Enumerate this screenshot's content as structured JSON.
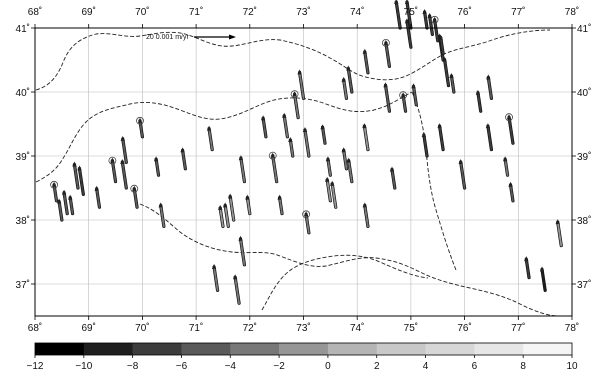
{
  "map": {
    "lon_range": [
      68,
      78
    ],
    "lat_range": [
      36.5,
      41
    ],
    "x_ticks": [
      "68˚",
      "69˚",
      "70˚",
      "71˚",
      "72˚",
      "73˚",
      "74˚",
      "75˚",
      "76˚",
      "77˚",
      "78˚"
    ],
    "y_ticks": [
      "37˚",
      "38˚",
      "39˚",
      "40˚",
      "41˚"
    ],
    "grid": true,
    "reference_vector": {
      "label": "20 0.001 m/yr"
    }
  },
  "colorbar": {
    "ticks": [
      "−12",
      "−10",
      "−8",
      "−6",
      "−4",
      "−2",
      "0",
      "2",
      "4",
      "6",
      "8",
      "10"
    ],
    "colors": [
      "#000000",
      "#1e1e1e",
      "#3c3c3c",
      "#5a5a5a",
      "#787878",
      "#969696",
      "#b4b4b4",
      "#c8c8c8",
      "#d7d7d7",
      "#e6e6e6",
      "#f5f5f5"
    ]
  },
  "chart_data": {
    "type": "scatter",
    "title": "",
    "xlabel": "",
    "ylabel": "",
    "xlim": [
      68,
      78
    ],
    "ylim": [
      36.5,
      41
    ],
    "grid": true,
    "series": [
      {
        "x": [
          68.4,
          68.5,
          68.6,
          68.8,
          68.9,
          68.7,
          69.2,
          69.5,
          69.7,
          69.7,
          70.3,
          70.8,
          71.3,
          71.9,
          72.5,
          72.0,
          71.5,
          71.6,
          71.7,
          71.9,
          72.6,
          73.1,
          73.5,
          73.6,
          73.1,
          73.5,
          72.3,
          72.7,
          72.9,
          73.0,
          73.4,
          73.8,
          73.9,
          74.2,
          74.6,
          74.9,
          75.1,
          75.3,
          75.6,
          75.0,
          75.3,
          75.4,
          75.5,
          75.6,
          75.7,
          75.8,
          76.3,
          76.5,
          76.5,
          76.9,
          76.9,
          77.2,
          77.5,
          77.8,
          76.0,
          76.8,
          69.9,
          70.4,
          71.4,
          71.8,
          72.8,
          73.8,
          74.2,
          74.6,
          75.0,
          75.6,
          74.7,
          74.2,
          73.9,
          74.8,
          70.0
        ],
        "y": [
          38.3,
          38.0,
          38.1,
          38.5,
          38.4,
          38.1,
          38.2,
          38.6,
          38.9,
          38.5,
          38.7,
          38.8,
          39.1,
          38.6,
          38.6,
          38.1,
          37.9,
          37.9,
          38.0,
          37.3,
          38.1,
          37.8,
          38.3,
          38.2,
          39.0,
          38.7,
          39.3,
          39.3,
          39.6,
          39.9,
          39.2,
          38.8,
          38.6,
          39.1,
          39.7,
          39.7,
          39.8,
          39.0,
          39.1,
          41.0,
          41.0,
          40.9,
          40.8,
          40.5,
          40.1,
          40.0,
          39.7,
          39.9,
          39.1,
          39.2,
          38.3,
          37.1,
          36.9,
          37.6,
          38.5,
          38.7,
          38.2,
          37.9,
          36.9,
          36.7,
          39.0,
          39.9,
          40.3,
          40.4,
          40.7,
          40.6,
          38.5,
          37.9,
          40.0,
          41.0,
          39.3
        ],
        "values": [
          -6,
          -6,
          -6,
          -6,
          -8,
          -6,
          -6,
          -6,
          -6,
          -6,
          -6,
          -6,
          -4,
          -4,
          -4,
          -2,
          -2,
          -2,
          -2,
          -4,
          -4,
          -4,
          -2,
          -2,
          -4,
          -4,
          -6,
          -4,
          -4,
          -4,
          -6,
          -4,
          -4,
          -2,
          -6,
          -6,
          -6,
          -8,
          -8,
          -8,
          -8,
          -8,
          -8,
          -8,
          -8,
          -6,
          -8,
          -6,
          -8,
          -8,
          -6,
          -8,
          -10,
          -2,
          -6,
          -4,
          -6,
          -4,
          -4,
          -4,
          -4,
          -4,
          -6,
          -6,
          -8,
          -8,
          -6,
          -4,
          -6,
          -8,
          -6
        ]
      }
    ]
  }
}
